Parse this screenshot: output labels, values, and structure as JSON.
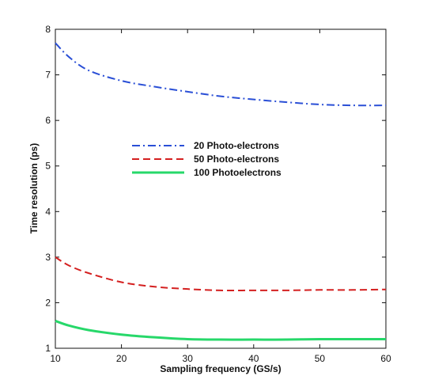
{
  "chart_data": {
    "type": "line",
    "xlabel": "Sampling frequency (GS/s)",
    "ylabel": "Time resolution (ps)",
    "xlim": [
      10,
      60
    ],
    "ylim": [
      1,
      8
    ],
    "xticks": [
      10,
      20,
      30,
      40,
      50,
      60
    ],
    "yticks": [
      1,
      2,
      3,
      4,
      5,
      6,
      7,
      8
    ],
    "grid": false,
    "legend_position": "center-left",
    "series": [
      {
        "name": "20 Photo-electrons",
        "color": "#2a4fd6",
        "style": "dashdot",
        "x": [
          10,
          12,
          15,
          20,
          25,
          30,
          35,
          40,
          45,
          50,
          55,
          60
        ],
        "y": [
          7.7,
          7.4,
          7.1,
          6.87,
          6.74,
          6.63,
          6.53,
          6.46,
          6.4,
          6.35,
          6.33,
          6.33
        ]
      },
      {
        "name": "50 Photo-electrons",
        "color": "#d42020",
        "style": "dashed",
        "x": [
          10,
          12,
          15,
          20,
          25,
          30,
          35,
          40,
          45,
          50,
          55,
          60
        ],
        "y": [
          3.0,
          2.82,
          2.65,
          2.45,
          2.35,
          2.3,
          2.27,
          2.27,
          2.27,
          2.28,
          2.28,
          2.29
        ]
      },
      {
        "name": "100 Photoelectrons",
        "color": "#27d86a",
        "style": "solid",
        "x": [
          10,
          12,
          15,
          20,
          25,
          30,
          35,
          40,
          45,
          50,
          55,
          60
        ],
        "y": [
          1.6,
          1.5,
          1.4,
          1.3,
          1.24,
          1.2,
          1.19,
          1.19,
          1.19,
          1.2,
          1.2,
          1.2
        ]
      }
    ]
  }
}
